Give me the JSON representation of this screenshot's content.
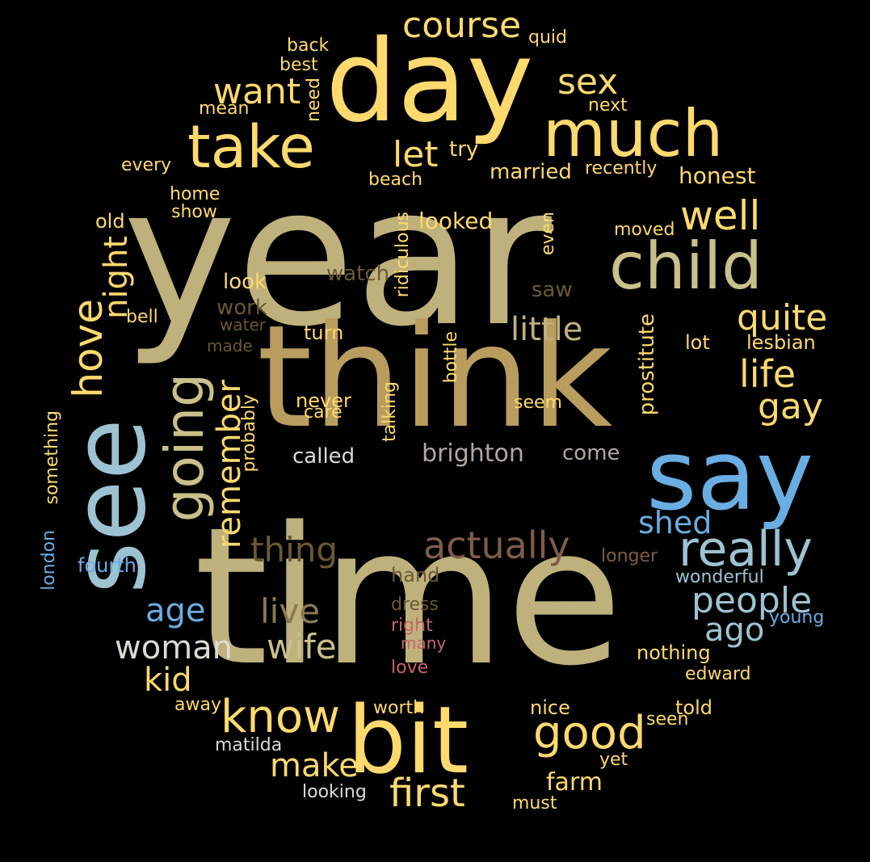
{
  "colors": {
    "background": "#000000",
    "khaki": "#bfb17c",
    "yellow": "#fed96d",
    "blue": "#6aade2",
    "light_blue": "#9dc3d2",
    "tan": "#b99d5f",
    "brown": "#7e5c49",
    "dark_olive": "#6a5835",
    "grey": "#aea8a0",
    "white": "#dcdcd4",
    "pink": "#c56767"
  },
  "words": {
    "year": "year",
    "time": "time",
    "think": "think",
    "day": "day",
    "see": "see",
    "say": "say",
    "bit": "bit",
    "much": "much",
    "take": "take",
    "child": "child",
    "going": "going",
    "good": "good",
    "really": "really",
    "know": "know",
    "well": "well",
    "actually": "actually",
    "first": "first",
    "people": "people",
    "hove": "hove",
    "life": "life",
    "sex": "sex",
    "course": "course",
    "wife": "wife",
    "live": "live",
    "thing": "thing",
    "quite": "quite",
    "gay": "gay",
    "little": "little",
    "remember": "remember",
    "let": "let",
    "want": "want",
    "night": "night",
    "woman": "woman",
    "make": "make",
    "kid": "kid",
    "age": "age",
    "ago": "ago",
    "shed": "shed",
    "brighton": "brighton",
    "farm": "farm",
    "looked": "looked",
    "honest": "honest",
    "married": "married",
    "try": "try",
    "look": "look",
    "work": "work",
    "watch": "watch",
    "turn": "turn",
    "never": "never",
    "called": "called",
    "come": "come",
    "saw": "saw",
    "seem": "seem",
    "lesbian": "lesbian",
    "lot": "lot",
    "moved": "moved",
    "recently": "recently",
    "next": "next",
    "mean": "mean",
    "back": "back",
    "best": "best",
    "quid": "quid",
    "every": "every",
    "home": "home",
    "show": "show",
    "old": "old",
    "bell": "bell",
    "water": "water",
    "made": "made",
    "care": "care",
    "hand": "hand",
    "dress": "dress",
    "right": "right",
    "many": "many",
    "love": "love",
    "longer": "longer",
    "wonderful": "wonderful",
    "young": "young",
    "nothing": "nothing",
    "edward": "edward",
    "told": "told",
    "seen": "seen",
    "nice": "nice",
    "worth": "worth",
    "away": "away",
    "matilda": "matilda",
    "yet": "yet",
    "looking": "looking",
    "must": "must",
    "fourth": "fourth",
    "london": "london",
    "something": "something",
    "probably": "probably",
    "talking": "talking",
    "bottle": "bottle",
    "ridiculous": "ridiculous",
    "even": "even",
    "prostitute": "prostitute",
    "beach": "beach",
    "need": "need"
  }
}
